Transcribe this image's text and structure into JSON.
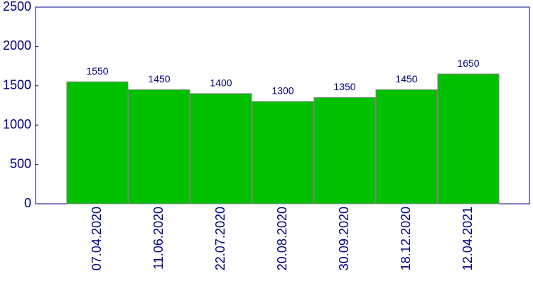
{
  "chart_data": {
    "type": "bar",
    "categories": [
      "07.04.2020",
      "11.06.2020",
      "22.07.2020",
      "20.08.2020",
      "30.09.2020",
      "18.12.2020",
      "12.04.2021"
    ],
    "values": [
      1550,
      1450,
      1400,
      1300,
      1350,
      1450,
      1650
    ],
    "color": "#00c000",
    "ylim": [
      0,
      2500
    ],
    "yticks": [
      0,
      500,
      1000,
      1500,
      2000,
      2500
    ]
  }
}
